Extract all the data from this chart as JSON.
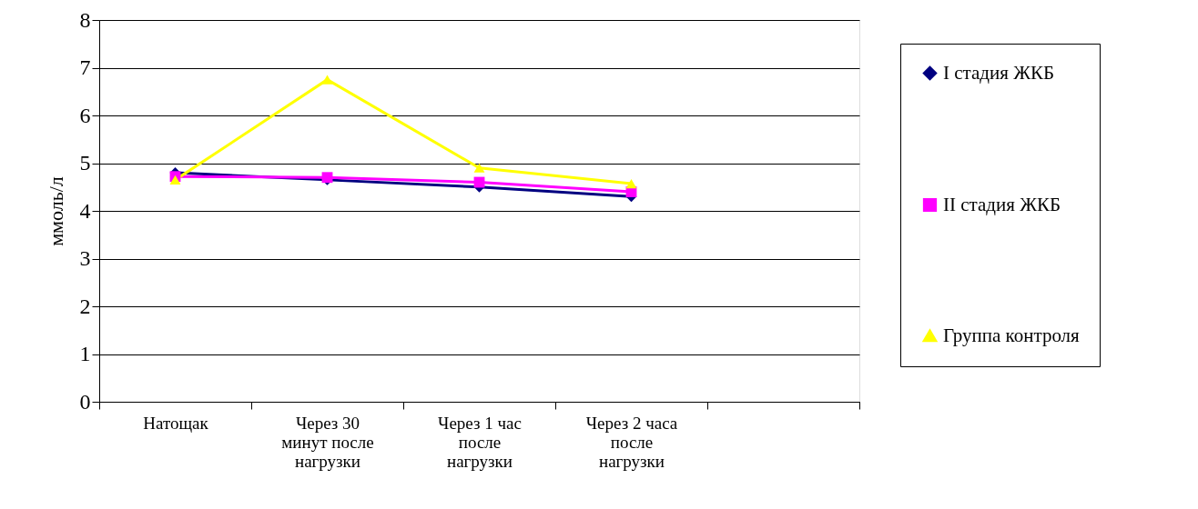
{
  "chart_data": {
    "type": "line",
    "ylabel": "ммоль/л",
    "categories": [
      "Натощак",
      "Через 30 минут после нагрузки",
      "Через 1 час после нагрузки",
      "Через 2 часа после нагрузки",
      null
    ],
    "series": [
      {
        "name": "I стадия ЖКБ",
        "color": "#000080",
        "marker": "diamond",
        "values": [
          4.8,
          4.65,
          4.5,
          4.3,
          null
        ]
      },
      {
        "name": "II стадия ЖКБ",
        "color": "#ff00ff",
        "marker": "square",
        "values": [
          4.72,
          4.7,
          4.6,
          4.4,
          null
        ]
      },
      {
        "name": "Группа контроля",
        "color": "#ffff00",
        "marker": "triangle",
        "values": [
          4.65,
          6.75,
          4.9,
          4.57,
          null
        ]
      }
    ],
    "ylim": [
      0,
      8
    ],
    "yticks": [
      0,
      1,
      2,
      3,
      4,
      5,
      6,
      7,
      8
    ],
    "grid": "y",
    "legend": "right"
  }
}
